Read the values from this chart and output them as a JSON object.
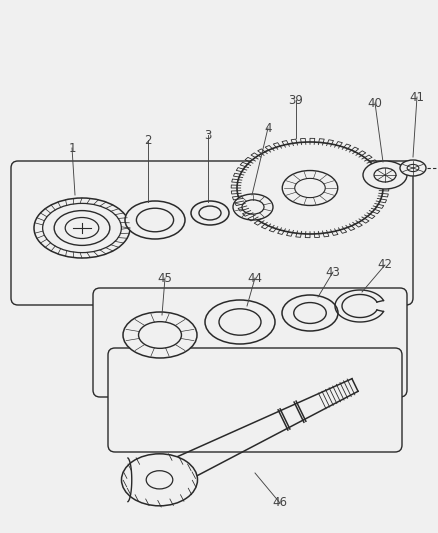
{
  "bg": "#f0f0f0",
  "lc": "#2a2a2a",
  "tc": "#444444",
  "fig_w": 4.39,
  "fig_h": 5.33,
  "dpi": 100
}
